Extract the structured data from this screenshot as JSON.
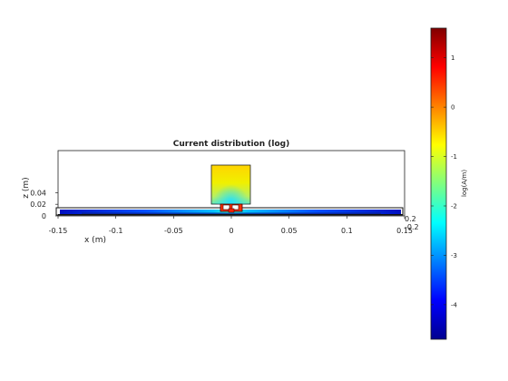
{
  "chart_data": {
    "type": "heatmap",
    "title": "Current distribution (log)",
    "xlabel": "x (m)",
    "ylabel": "z (m)",
    "xlim": [
      -0.15,
      0.15
    ],
    "zlim": [
      0,
      0.05
    ],
    "x_ticks": [
      "-0.15",
      "-0.1",
      "-0.05",
      "0",
      "0.05",
      "0.1",
      "0.15"
    ],
    "z_ticks": [
      "0",
      "0.02",
      "0.04"
    ],
    "y_depth_ticks": [
      "0.2",
      "-0.2"
    ],
    "colorbar": {
      "label": "log(A/m)",
      "range": [
        -4.7,
        1.6
      ],
      "ticks": [
        "1",
        "0",
        "-1",
        "-2",
        "-3",
        "-4"
      ],
      "colormap": "jet"
    },
    "structures": [
      {
        "name": "ground plane",
        "x": [
          -0.15,
          0.15
        ],
        "z": [
          -0.002,
          0.006
        ]
      },
      {
        "name": "patch block",
        "x": [
          -0.016,
          0.016
        ],
        "z": [
          0.01,
          0.044
        ]
      },
      {
        "name": "feed",
        "x": [
          -0.008,
          0.008
        ],
        "z": [
          0.004,
          0.01
        ]
      }
    ],
    "grid": false
  }
}
